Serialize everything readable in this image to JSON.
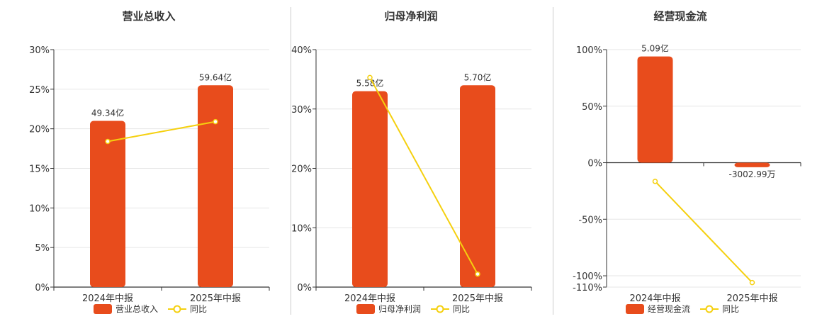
{
  "colors": {
    "bar": "#e84c1c",
    "line": "#f5d00f",
    "grid": "#e6e6e6",
    "axis": "#333333"
  },
  "chart_data": [
    {
      "type": "bar",
      "title": "营业总收入",
      "categories": [
        "2024年中报",
        "2025年中报"
      ],
      "bar_values": [
        21.0,
        25.5
      ],
      "bar_labels": [
        "49.34亿",
        "59.64亿"
      ],
      "line_values": [
        18.4,
        20.9
      ],
      "ylim": [
        0,
        30
      ],
      "yticks": [
        0,
        5,
        10,
        15,
        20,
        25,
        30
      ],
      "ytick_labels": [
        "0%",
        "5%",
        "10%",
        "15%",
        "20%",
        "25%",
        "30%"
      ],
      "legend": [
        "营业总收入",
        "同比"
      ]
    },
    {
      "type": "bar",
      "title": "归母净利润",
      "categories": [
        "2024年中报",
        "2025年中报"
      ],
      "bar_values": [
        33.0,
        34.0
      ],
      "bar_labels": [
        "5.58亿",
        "5.70亿"
      ],
      "line_values": [
        35.3,
        2.2
      ],
      "ylim": [
        0,
        40
      ],
      "yticks": [
        0,
        10,
        20,
        30,
        40
      ],
      "ytick_labels": [
        "0%",
        "10%",
        "20%",
        "30%",
        "40%"
      ],
      "legend": [
        "归母净利润",
        "同比"
      ]
    },
    {
      "type": "bar",
      "title": "经营现金流",
      "categories": [
        "2024年中报",
        "2025年中报"
      ],
      "bar_values": [
        94.0,
        -4.0
      ],
      "bar_labels": [
        "5.09亿",
        "-3002.99万"
      ],
      "line_values": [
        -16.5,
        -106.0
      ],
      "ylim": [
        -110,
        100
      ],
      "yticks": [
        -110,
        -100,
        -50,
        0,
        50,
        100
      ],
      "ytick_labels": [
        "-110%",
        "-100%",
        "-50%",
        "0%",
        "50%",
        "100%"
      ],
      "legend": [
        "经营现金流",
        "同比"
      ]
    }
  ]
}
